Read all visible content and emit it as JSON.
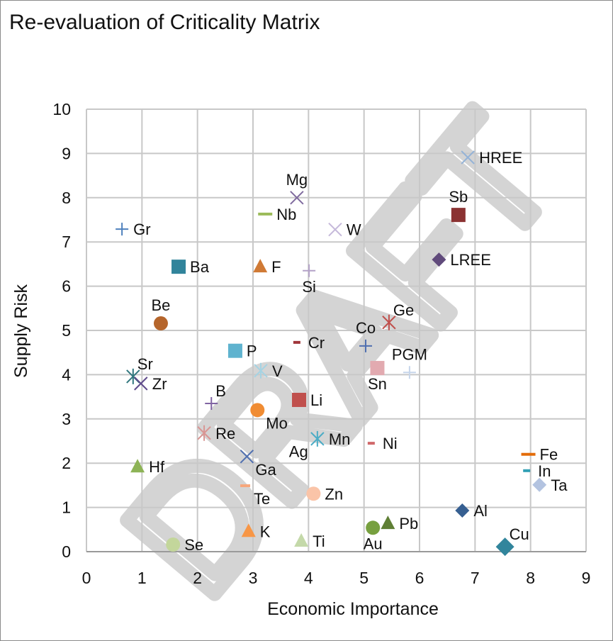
{
  "chart_data": {
    "type": "scatter",
    "title": "Re-evaluation of Criticality Matrix",
    "xlabel": "Economic Importance",
    "ylabel": "Supply Risk",
    "xlim": [
      0,
      9
    ],
    "ylim": [
      0,
      10
    ],
    "xticks": [
      "0",
      "1",
      "2",
      "3",
      "4",
      "5",
      "6",
      "7",
      "8",
      "9"
    ],
    "yticks": [
      "0",
      "1",
      "2",
      "3",
      "4",
      "5",
      "6",
      "7",
      "8",
      "9",
      "10"
    ],
    "grid": true,
    "watermark": "DRAFT",
    "points": [
      {
        "name": "Gr",
        "x": 0.64,
        "y": 7.29,
        "marker": "plus",
        "color": "#4f81bd",
        "pos": "right"
      },
      {
        "name": "Ba",
        "x": 1.66,
        "y": 6.44,
        "marker": "square",
        "color": "#31849b",
        "pos": "right"
      },
      {
        "name": "Be",
        "x": 1.34,
        "y": 5.16,
        "marker": "circle",
        "color": "#b5652b",
        "pos": "above"
      },
      {
        "name": "Sr",
        "x": 0.84,
        "y": 3.96,
        "marker": "star",
        "color": "#31777e",
        "pos": "above-right"
      },
      {
        "name": "Zr",
        "x": 0.98,
        "y": 3.8,
        "marker": "x",
        "color": "#5f4b8b",
        "pos": "right"
      },
      {
        "name": "Hf",
        "x": 0.92,
        "y": 1.92,
        "marker": "triangle",
        "color": "#8db356",
        "pos": "right"
      },
      {
        "name": "Se",
        "x": 1.56,
        "y": 0.16,
        "marker": "circle",
        "color": "#c3d69b",
        "pos": "right"
      },
      {
        "name": "B",
        "x": 2.25,
        "y": 3.35,
        "marker": "plus",
        "color": "#8064a2",
        "pos": "above-right"
      },
      {
        "name": "Re",
        "x": 2.12,
        "y": 2.68,
        "marker": "star",
        "color": "#d99694",
        "pos": "right"
      },
      {
        "name": "P",
        "x": 2.68,
        "y": 4.54,
        "marker": "square",
        "color": "#5fb3cf",
        "pos": "right"
      },
      {
        "name": "Ga",
        "x": 2.89,
        "y": 2.15,
        "marker": "x",
        "color": "#4f6fb0",
        "pos": "below-right"
      },
      {
        "name": "Te",
        "x": 2.86,
        "y": 1.49,
        "marker": "dash",
        "color": "#f7a77c",
        "pos": "below-right"
      },
      {
        "name": "K",
        "x": 2.92,
        "y": 0.46,
        "marker": "triangle",
        "color": "#f79646",
        "pos": "right"
      },
      {
        "name": "Mg",
        "x": 3.79,
        "y": 8.0,
        "marker": "x",
        "color": "#7f6a9e",
        "pos": "above"
      },
      {
        "name": "Nb",
        "x": 3.22,
        "y": 7.63,
        "marker": "dash",
        "color": "#9bbb59",
        "pos": "right"
      },
      {
        "name": "F",
        "x": 3.13,
        "y": 6.44,
        "marker": "triangle",
        "color": "#d07a35",
        "pos": "right"
      },
      {
        "name": "Si",
        "x": 4.01,
        "y": 6.35,
        "marker": "plus",
        "color": "#b3a2c7",
        "pos": "below"
      },
      {
        "name": "V",
        "x": 3.14,
        "y": 4.09,
        "marker": "star",
        "color": "#a5d3e3",
        "pos": "right"
      },
      {
        "name": "Cr",
        "x": 3.79,
        "y": 4.73,
        "marker": "dash",
        "color": "#a0363a",
        "pos": "right"
      },
      {
        "name": "Mo",
        "x": 3.08,
        "y": 3.2,
        "marker": "circle",
        "color": "#f08c33",
        "pos": "below-right"
      },
      {
        "name": "Li",
        "x": 3.83,
        "y": 3.43,
        "marker": "square",
        "color": "#c0504d",
        "pos": "right"
      },
      {
        "name": "Mn",
        "x": 4.16,
        "y": 2.55,
        "marker": "star",
        "color": "#4bacc6",
        "pos": "right"
      },
      {
        "name": "Ag",
        "x": 3.82,
        "y": 2.27,
        "marker": "none",
        "color": "#ffffff",
        "pos": "center"
      },
      {
        "name": "Zn",
        "x": 4.09,
        "y": 1.31,
        "marker": "circle",
        "color": "#fac4a8",
        "pos": "right"
      },
      {
        "name": "Ti",
        "x": 3.87,
        "y": 0.24,
        "marker": "triangle",
        "color": "#c4d9a9",
        "pos": "right"
      },
      {
        "name": "W",
        "x": 4.48,
        "y": 7.28,
        "marker": "x",
        "color": "#c5b8da",
        "pos": "right"
      },
      {
        "name": "Co",
        "x": 5.03,
        "y": 4.65,
        "marker": "plus",
        "color": "#4f6fb0",
        "pos": "above"
      },
      {
        "name": "Ge",
        "x": 5.45,
        "y": 5.18,
        "marker": "star",
        "color": "#c0504d",
        "pos": "above-right"
      },
      {
        "name": "Sn",
        "x": 5.24,
        "y": 4.15,
        "marker": "square",
        "color": "#e2aab0",
        "pos": "below"
      },
      {
        "name": "PGM",
        "x": 5.82,
        "y": 4.05,
        "marker": "plus",
        "color": "#c6d5ea",
        "pos": "above"
      },
      {
        "name": "Ni",
        "x": 5.13,
        "y": 2.45,
        "marker": "dash",
        "color": "#d0686a",
        "pos": "right"
      },
      {
        "name": "Pb",
        "x": 5.43,
        "y": 0.64,
        "marker": "triangle",
        "color": "#5f7f35",
        "pos": "right"
      },
      {
        "name": "Au",
        "x": 5.16,
        "y": 0.54,
        "marker": "circle",
        "color": "#77a03f",
        "pos": "below"
      },
      {
        "name": "Sb",
        "x": 6.7,
        "y": 7.61,
        "marker": "square",
        "color": "#8b3232",
        "pos": "above"
      },
      {
        "name": "LREE",
        "x": 6.35,
        "y": 6.6,
        "marker": "diamond",
        "color": "#604a7b",
        "pos": "right"
      },
      {
        "name": "HREE",
        "x": 6.87,
        "y": 8.91,
        "marker": "x",
        "color": "#95b3d7",
        "pos": "right"
      },
      {
        "name": "Al",
        "x": 6.77,
        "y": 0.93,
        "marker": "diamond",
        "color": "#365f91",
        "pos": "right"
      },
      {
        "name": "Cu",
        "x": 7.54,
        "y": 0.11,
        "marker": "diamond",
        "color": "#31859c",
        "pos": "above-right"
      },
      {
        "name": "Fe",
        "x": 7.96,
        "y": 2.2,
        "marker": "dash",
        "color": "#e36c09",
        "pos": "right"
      },
      {
        "name": "In",
        "x": 7.93,
        "y": 1.83,
        "marker": "dash",
        "color": "#31a0b5",
        "pos": "right"
      },
      {
        "name": "Ta",
        "x": 8.16,
        "y": 1.51,
        "marker": "diamond",
        "color": "#b3c3e0",
        "pos": "right"
      }
    ]
  }
}
